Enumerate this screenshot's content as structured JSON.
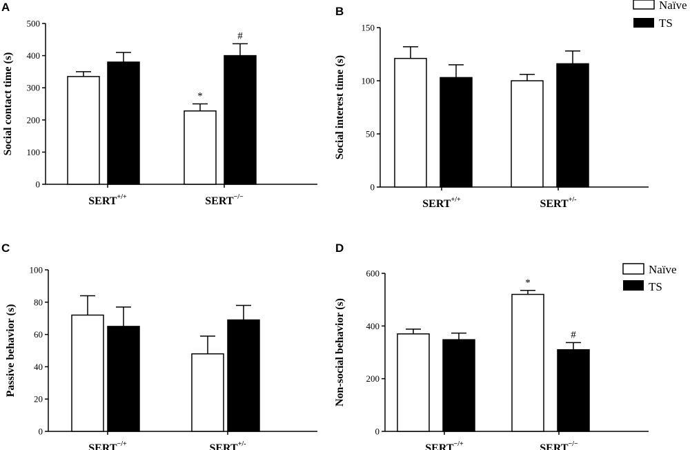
{
  "colors": {
    "naive_fill": "#ffffff",
    "ts_fill": "#000000",
    "stroke": "#000000"
  },
  "legend": {
    "naive": "Naïve",
    "ts": "TS"
  },
  "chart_data": [
    {
      "id": "A",
      "type": "bar",
      "letter": "A",
      "ylabel": "Social contact time (s)",
      "ylim": [
        0,
        500
      ],
      "yticks": [
        0,
        100,
        200,
        300,
        400,
        500
      ],
      "categories": [
        {
          "base": "SERT",
          "sup": "+/+"
        },
        {
          "base": "SERT",
          "sup": "−/−"
        }
      ],
      "series": [
        {
          "name": "Naïve",
          "values": [
            335,
            228
          ],
          "errors": [
            15,
            22
          ]
        },
        {
          "name": "TS",
          "values": [
            380,
            400
          ],
          "errors": [
            30,
            37
          ]
        }
      ],
      "annotations": [
        {
          "series": 0,
          "category": 1,
          "text": "*"
        },
        {
          "series": 1,
          "category": 1,
          "text": "#"
        }
      ],
      "legend_position": "top-right"
    },
    {
      "id": "B",
      "type": "bar",
      "letter": "B",
      "ylabel": "Social interest time (s)",
      "ylim": [
        0,
        150
      ],
      "yticks": [
        0,
        50,
        100,
        150
      ],
      "categories": [
        {
          "base": "SERT",
          "sup": "+/+"
        },
        {
          "base": "SERT",
          "sup": "+/-"
        }
      ],
      "series": [
        {
          "name": "Naïve",
          "values": [
            121,
            100
          ],
          "errors": [
            11,
            6
          ]
        },
        {
          "name": "TS",
          "values": [
            103,
            116
          ],
          "errors": [
            12,
            12
          ]
        }
      ],
      "annotations": []
    },
    {
      "id": "C",
      "type": "bar",
      "letter": "C",
      "ylabel": "Passive behavior (s)",
      "ylim": [
        0,
        100
      ],
      "yticks": [
        0,
        20,
        40,
        60,
        80,
        100
      ],
      "categories": [
        {
          "base": "SERT",
          "sup": "−/+"
        },
        {
          "base": "SERT",
          "sup": "+/-"
        }
      ],
      "series": [
        {
          "name": "Naïve",
          "values": [
            72,
            48
          ],
          "errors": [
            12,
            11
          ]
        },
        {
          "name": "TS",
          "values": [
            65,
            69
          ],
          "errors": [
            12,
            9
          ]
        }
      ],
      "annotations": []
    },
    {
      "id": "D",
      "type": "bar",
      "letter": "D",
      "ylabel": "Non-social behavior (s)",
      "ylim": [
        0,
        600
      ],
      "yticks": [
        0,
        200,
        400,
        600
      ],
      "categories": [
        {
          "base": "SERT",
          "sup": "−/+"
        },
        {
          "base": "SERT",
          "sup": "−/−"
        }
      ],
      "series": [
        {
          "name": "Naïve",
          "values": [
            370,
            520
          ],
          "errors": [
            18,
            15
          ]
        },
        {
          "name": "TS",
          "values": [
            348,
            310
          ],
          "errors": [
            25,
            27
          ]
        }
      ],
      "annotations": [
        {
          "series": 0,
          "category": 1,
          "text": "*"
        },
        {
          "series": 1,
          "category": 1,
          "text": "#"
        }
      ],
      "legend_position": "right"
    }
  ]
}
